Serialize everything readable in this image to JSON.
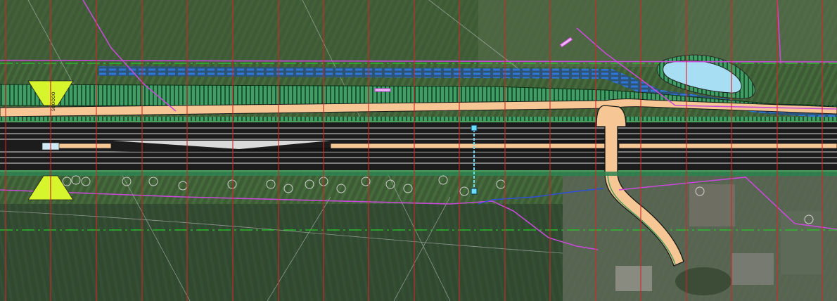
{
  "map": {
    "view": "plan-drawing-over-aerial-photo",
    "layers": [
      "aerial-orthophoto",
      "grid-lines",
      "road-corridor",
      "green-embankment",
      "ditch-blue-hatch",
      "retention-pond",
      "side-road",
      "property-boundaries",
      "tree-symbols",
      "section-markers"
    ],
    "station_label": "SOOOOO",
    "colors": {
      "grid_line": "#d42626",
      "embankment": "#3f9e63",
      "road_shoulder": "#f6c694",
      "road_deck": "#1c1c1c",
      "pond": "#a8def4",
      "ditch_hatch": "#2f76d6",
      "boundary": "#c64bd6",
      "dash_line": "#2ac92a",
      "marker": "#d7f52c"
    }
  }
}
